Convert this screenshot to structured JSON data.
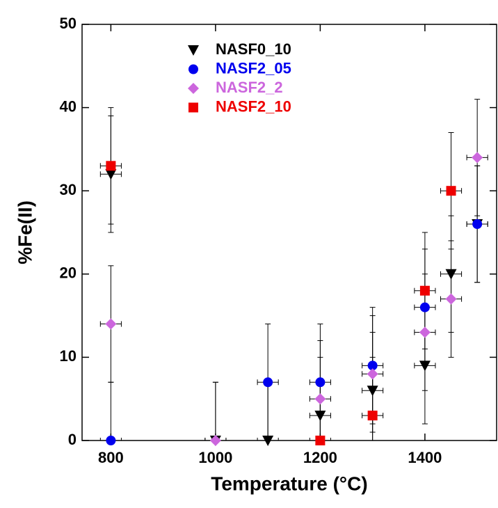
{
  "chart_data": {
    "type": "scatter",
    "x_label": "Temperature (°C)",
    "y_label": "%Fe(II)",
    "xlim": [
      745,
      1537
    ],
    "xticks": [
      800,
      1000,
      1200,
      1400
    ],
    "ylim": [
      0,
      50
    ],
    "yticks": [
      0,
      10,
      20,
      30,
      40,
      50
    ],
    "legend": "upper-left",
    "series": [
      {
        "name": "NASF0_10",
        "color": "#000000",
        "marker": "triangle-down",
        "x": [
          800,
          1000,
          1100,
          1200,
          1300,
          1400,
          1450,
          1500
        ],
        "values": [
          32,
          0,
          0,
          3,
          6,
          9,
          20,
          26
        ],
        "yerr": 7,
        "xerr": 20
      },
      {
        "name": "NASF2_05",
        "color": "#0000ee",
        "marker": "circle",
        "x": [
          800,
          1100,
          1200,
          1300,
          1400,
          1500
        ],
        "values": [
          0,
          7,
          7,
          9,
          16,
          26
        ],
        "yerr": 7,
        "xerr": 20
      },
      {
        "name": "NASF2_2",
        "color": "#cc66dd",
        "marker": "diamond",
        "x": [
          800,
          1000,
          1200,
          1300,
          1400,
          1450,
          1500
        ],
        "values": [
          14,
          0,
          5,
          8,
          13,
          17,
          34
        ],
        "yerr": 7,
        "xerr": 20
      },
      {
        "name": "NASF2_10",
        "color": "#ee0000",
        "marker": "square",
        "x": [
          800,
          1200,
          1300,
          1400,
          1450
        ],
        "values": [
          33,
          0,
          3,
          18,
          30
        ],
        "yerr": 7,
        "xerr": 20
      }
    ]
  }
}
